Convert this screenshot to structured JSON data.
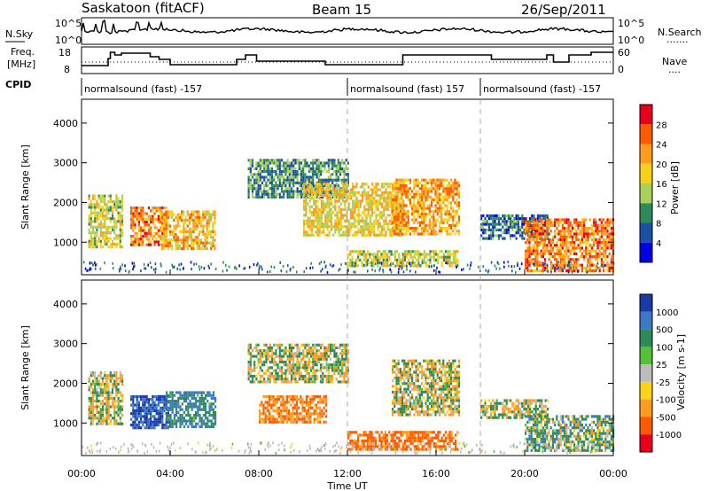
{
  "header": {
    "station": "Saskatoon (fitACF)",
    "beam": "Beam 15",
    "date": "26/Sep/2011"
  },
  "noise_panel": {
    "left_label": "N.Sky",
    "left_ticks": [
      "10^5",
      "10^0"
    ],
    "right_ticks": [
      "10^5",
      "10^0"
    ],
    "right_label": "N.Search"
  },
  "freq_panel": {
    "left_label_1": "Freq.",
    "left_label_2": "[MHz]",
    "left_ticks": [
      "18",
      "8"
    ],
    "right_ticks": [
      "60",
      "0"
    ],
    "right_label": "Nave"
  },
  "cpid": {
    "label": "CPID",
    "segments": [
      {
        "text": "normalsound (fast) -157",
        "start_hour": 0
      },
      {
        "text": "normalsound (fast) 157",
        "start_hour": 12
      },
      {
        "text": "normalsound (fast) -157",
        "start_hour": 18
      }
    ]
  },
  "chart_data": [
    {
      "type": "heatmap",
      "title": "Power",
      "ylabel": "Slant Range [km]",
      "xlabel": "Time UT",
      "xlim": [
        0,
        24
      ],
      "ylim": [
        180,
        4600
      ],
      "yticks": [
        "1000",
        "2000",
        "3000",
        "4000"
      ],
      "colorbar": {
        "label": "Power [dB]",
        "ticks": [
          "28",
          "24",
          "20",
          "16",
          "12",
          "8",
          "4"
        ],
        "colors": [
          "#e8001a",
          "#ff5a00",
          "#ff9b1e",
          "#f5d21a",
          "#a8d05a",
          "#2e8b57",
          "#1c4fa8",
          "#0000e0"
        ]
      },
      "regions": [
        {
          "t": [
            0.3,
            1.8
          ],
          "r": [
            900,
            2200
          ],
          "level": 18
        },
        {
          "t": [
            2.2,
            3.8
          ],
          "r": [
            900,
            1900
          ],
          "level": 26
        },
        {
          "t": [
            3.6,
            6.0
          ],
          "r": [
            800,
            1800
          ],
          "level": 22
        },
        {
          "t": [
            7.5,
            12.0
          ],
          "r": [
            2100,
            3100
          ],
          "level": 12
        },
        {
          "t": [
            10.0,
            14.5
          ],
          "r": [
            1200,
            2500
          ],
          "level": 20
        },
        {
          "t": [
            12.0,
            17.0
          ],
          "r": [
            400,
            800
          ],
          "level": 18
        },
        {
          "t": [
            14.0,
            17.0
          ],
          "r": [
            1200,
            2600
          ],
          "level": 24
        },
        {
          "t": [
            18.0,
            21.0
          ],
          "r": [
            1100,
            1700
          ],
          "level": 10
        },
        {
          "t": [
            20.0,
            24.0
          ],
          "r": [
            300,
            1600
          ],
          "level": 26
        }
      ]
    },
    {
      "type": "heatmap",
      "title": "Velocity",
      "ylabel": "Slant Range [km]",
      "xlabel": "Time UT",
      "xlim": [
        0,
        24
      ],
      "ylim": [
        180,
        4600
      ],
      "yticks": [
        "1000",
        "2000",
        "3000",
        "4000"
      ],
      "colorbar": {
        "label": "Velocity [m s-1]",
        "ticks": [
          "1000",
          "500",
          "100",
          "25",
          "-25",
          "-100",
          "-500",
          "-1000"
        ],
        "colors": [
          "#1a3aa8",
          "#3b78c8",
          "#2e8b57",
          "#55c03a",
          "#bcbcbc",
          "#ffd21a",
          "#ff9b1e",
          "#ff5a00",
          "#e8001a"
        ]
      },
      "regions": [
        {
          "t": [
            0.3,
            1.8
          ],
          "r": [
            1000,
            2300
          ],
          "level": 0
        },
        {
          "t": [
            2.2,
            4.0
          ],
          "r": [
            900,
            1700
          ],
          "level": 800
        },
        {
          "t": [
            3.8,
            6.0
          ],
          "r": [
            900,
            1800
          ],
          "level": 300
        },
        {
          "t": [
            7.5,
            12.0
          ],
          "r": [
            2000,
            3000
          ],
          "level": 0
        },
        {
          "t": [
            8.0,
            11.0
          ],
          "r": [
            1000,
            1700
          ],
          "level": -300
        },
        {
          "t": [
            12.0,
            17.0
          ],
          "r": [
            300,
            800
          ],
          "level": -400
        },
        {
          "t": [
            14.0,
            17.0
          ],
          "r": [
            1200,
            2600
          ],
          "level": 0
        },
        {
          "t": [
            18.0,
            21.0
          ],
          "r": [
            1100,
            1600
          ],
          "level": 0
        },
        {
          "t": [
            20.0,
            24.0
          ],
          "r": [
            300,
            1200
          ],
          "level": 120
        }
      ]
    }
  ],
  "x_axis": {
    "ticks": [
      "00:00",
      "04:00",
      "08:00",
      "12:00",
      "16:00",
      "20:00",
      "00:00"
    ],
    "label": "Time UT"
  },
  "nsearch_legend": ".......",
  "nave_legend": "...."
}
